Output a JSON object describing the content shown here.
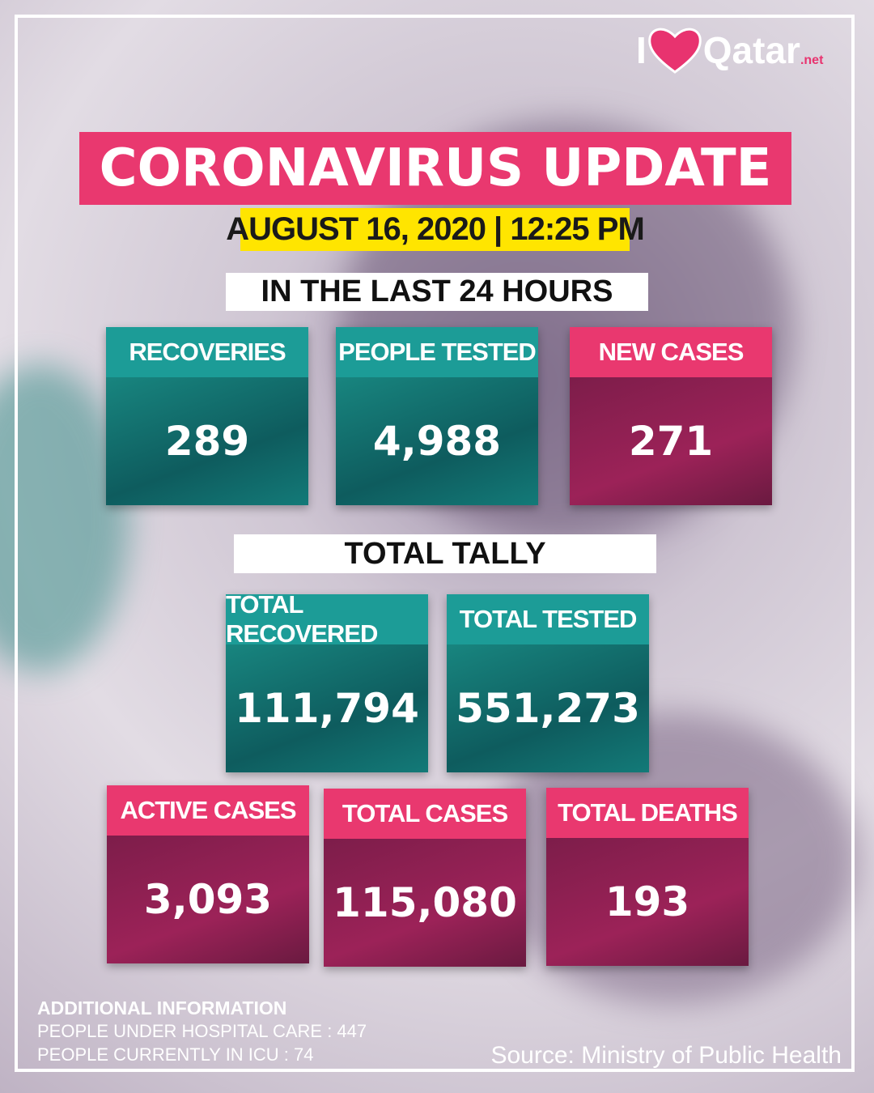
{
  "logo": {
    "prefix": "I",
    "name": "Qatar",
    "suffix": ".net"
  },
  "header": {
    "title": "CORONAVIRUS UPDATE",
    "date": "AUGUST 16, 2020 | 12:25 PM"
  },
  "last_24_hours": {
    "heading": "IN THE LAST 24 HOURS",
    "cards": [
      {
        "label": "RECOVERIES",
        "value": "289"
      },
      {
        "label": "PEOPLE TESTED",
        "value": "4,988"
      },
      {
        "label": "NEW CASES",
        "value": "271"
      }
    ]
  },
  "total_tally": {
    "heading": "TOTAL TALLY",
    "cards": [
      {
        "label": "TOTAL RECOVERED",
        "value": "111,794"
      },
      {
        "label": "TOTAL TESTED",
        "value": "551,273"
      },
      {
        "label": "ACTIVE CASES",
        "value": "3,093"
      },
      {
        "label": "TOTAL CASES",
        "value": "115,080"
      },
      {
        "label": "TOTAL DEATHS",
        "value": "193"
      }
    ]
  },
  "additional": {
    "heading": "ADDITIONAL INFORMATION",
    "lines": [
      "PEOPLE UNDER HOSPITAL CARE : 447",
      "PEOPLE CURRENTLY IN ICU : 74"
    ]
  },
  "source": "Source: Ministry of Public Health"
}
